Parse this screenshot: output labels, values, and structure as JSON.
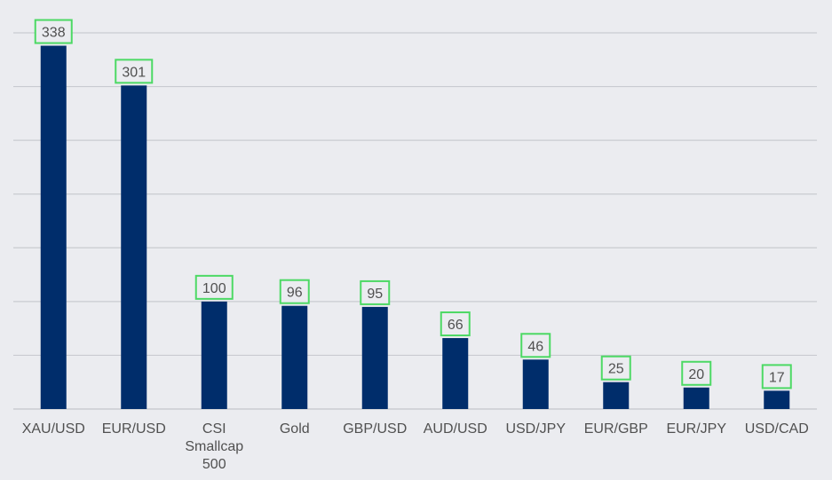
{
  "chart_data": {
    "type": "bar",
    "categories": [
      "XAU/USD",
      "EUR/USD",
      "CSI Smallcap 500",
      "Gold",
      "GBP/USD",
      "AUD/USD",
      "USD/JPY",
      "EUR/GBP",
      "EUR/JPY",
      "USD/CAD"
    ],
    "category_lines": [
      [
        "XAU/USD"
      ],
      [
        "EUR/USD"
      ],
      [
        "CSI",
        "Smallcap",
        "500"
      ],
      [
        "Gold"
      ],
      [
        "GBP/USD"
      ],
      [
        "AUD/USD"
      ],
      [
        "USD/JPY"
      ],
      [
        "EUR/GBP"
      ],
      [
        "EUR/JPY"
      ],
      [
        "USD/CAD"
      ]
    ],
    "values": [
      338,
      301,
      100,
      96,
      95,
      66,
      46,
      25,
      20,
      17
    ],
    "ylim": [
      0,
      350
    ],
    "grid": true,
    "tick_labels_visible": false,
    "colors": {
      "bar": "#002d6b",
      "grid": "#c9cbd1",
      "label_box": "#4cd964",
      "background": "#ebecf0",
      "text": "#505050"
    }
  }
}
